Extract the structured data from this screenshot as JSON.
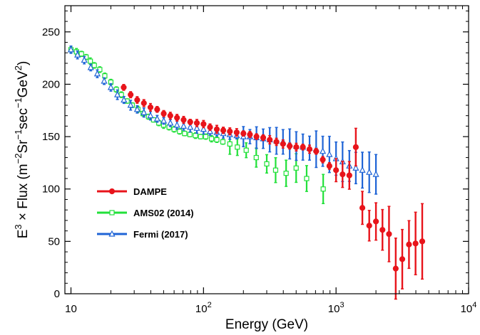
{
  "chart_data": {
    "type": "scatter",
    "title": "",
    "xlabel": "Energy (GeV)",
    "ylabel": {
      "parts": [
        "E",
        "3",
        " × Flux   (m",
        "−2",
        "Sr",
        "−1",
        "sec",
        "−1",
        "GeV",
        "2",
        ")"
      ]
    },
    "xscale": "log",
    "xlim": [
      9,
      10000
    ],
    "ylim": [
      0,
      275
    ],
    "xticks": [
      {
        "value": 10,
        "label": "10",
        "sup": ""
      },
      {
        "value": 100,
        "label": "10",
        "sup": "2"
      },
      {
        "value": 1000,
        "label": "10",
        "sup": "3"
      },
      {
        "value": 10000,
        "label": "10",
        "sup": "4"
      }
    ],
    "yticks": [
      0,
      50,
      100,
      150,
      200,
      250
    ],
    "grid": false,
    "legend_position": "lower-left",
    "series": [
      {
        "name": "DAMPE",
        "color": "#e8141b",
        "marker": "filled-circle",
        "x": [
          25,
          28.2,
          31.6,
          35.5,
          39.8,
          44.7,
          50.1,
          56.2,
          63.1,
          70.8,
          79.4,
          89.1,
          100,
          112,
          126,
          141,
          158,
          178,
          200,
          224,
          251,
          282,
          316,
          355,
          398,
          447,
          501,
          562,
          631,
          708,
          794,
          891,
          1000,
          1120,
          1260,
          1410,
          1580,
          1780,
          2000,
          2240,
          2510,
          2820,
          3160,
          3550,
          3980,
          4470
        ],
        "y": [
          197,
          190,
          185,
          182,
          178,
          176,
          172,
          170,
          168,
          166,
          164,
          163,
          162,
          159,
          157,
          156,
          155,
          154,
          153,
          152,
          150,
          149,
          147,
          145,
          143,
          141,
          140,
          140,
          138,
          136,
          128,
          122,
          118,
          114,
          113,
          140,
          82,
          65,
          69,
          61,
          57,
          24,
          33,
          47,
          48,
          50
        ]
      },
      {
        "name": "AMS02 (2014)",
        "color": "#22e03a",
        "marker": "open-square",
        "x": [
          10,
          11,
          12,
          13,
          14,
          15,
          16.5,
          18,
          20,
          22,
          24,
          26.5,
          29,
          32,
          35,
          38.5,
          42,
          46,
          50,
          55,
          60,
          66,
          72,
          79,
          87,
          95,
          104,
          115,
          126,
          140,
          158,
          180,
          210,
          250,
          300,
          350,
          420,
          500,
          600,
          800
        ],
        "y": [
          233,
          231,
          229,
          226,
          222,
          218,
          214,
          208,
          202,
          195,
          190,
          184,
          180,
          176,
          172,
          169,
          166,
          163,
          161,
          159,
          157,
          155,
          153,
          152,
          151,
          150,
          150,
          148,
          147,
          145,
          143,
          140,
          137,
          130,
          124,
          118,
          115,
          120,
          110,
          100
        ]
      },
      {
        "name": "Fermi (2017)",
        "color": "#1f64d6",
        "marker": "open-triangle",
        "x": [
          10,
          11.2,
          12.6,
          14.1,
          15.8,
          17.8,
          20,
          22.4,
          25.1,
          28.2,
          31.6,
          35.5,
          39.8,
          44.7,
          50.1,
          56.2,
          63.1,
          70.8,
          79.4,
          89.1,
          100,
          112,
          126,
          141,
          158,
          178,
          200,
          224,
          251,
          282,
          316,
          355,
          398,
          447,
          501,
          562,
          631,
          708,
          794,
          891,
          1000,
          1120,
          1260,
          1410,
          1580,
          1780,
          2000
        ],
        "y": [
          233,
          228,
          223,
          216,
          210,
          203,
          197,
          190,
          185,
          180,
          176,
          173,
          170,
          167,
          165,
          163,
          161,
          160,
          159,
          158,
          157,
          155,
          154,
          153,
          152,
          151,
          150,
          150,
          149,
          148,
          147,
          146,
          145,
          143,
          141,
          140,
          139,
          138,
          136,
          133,
          129,
          126,
          122,
          120,
          118,
          116,
          114
        ]
      }
    ]
  },
  "legend": {
    "items": [
      {
        "label": "DAMPE"
      },
      {
        "label": "AMS02 (2014)"
      },
      {
        "label": "Fermi (2017)"
      }
    ]
  }
}
